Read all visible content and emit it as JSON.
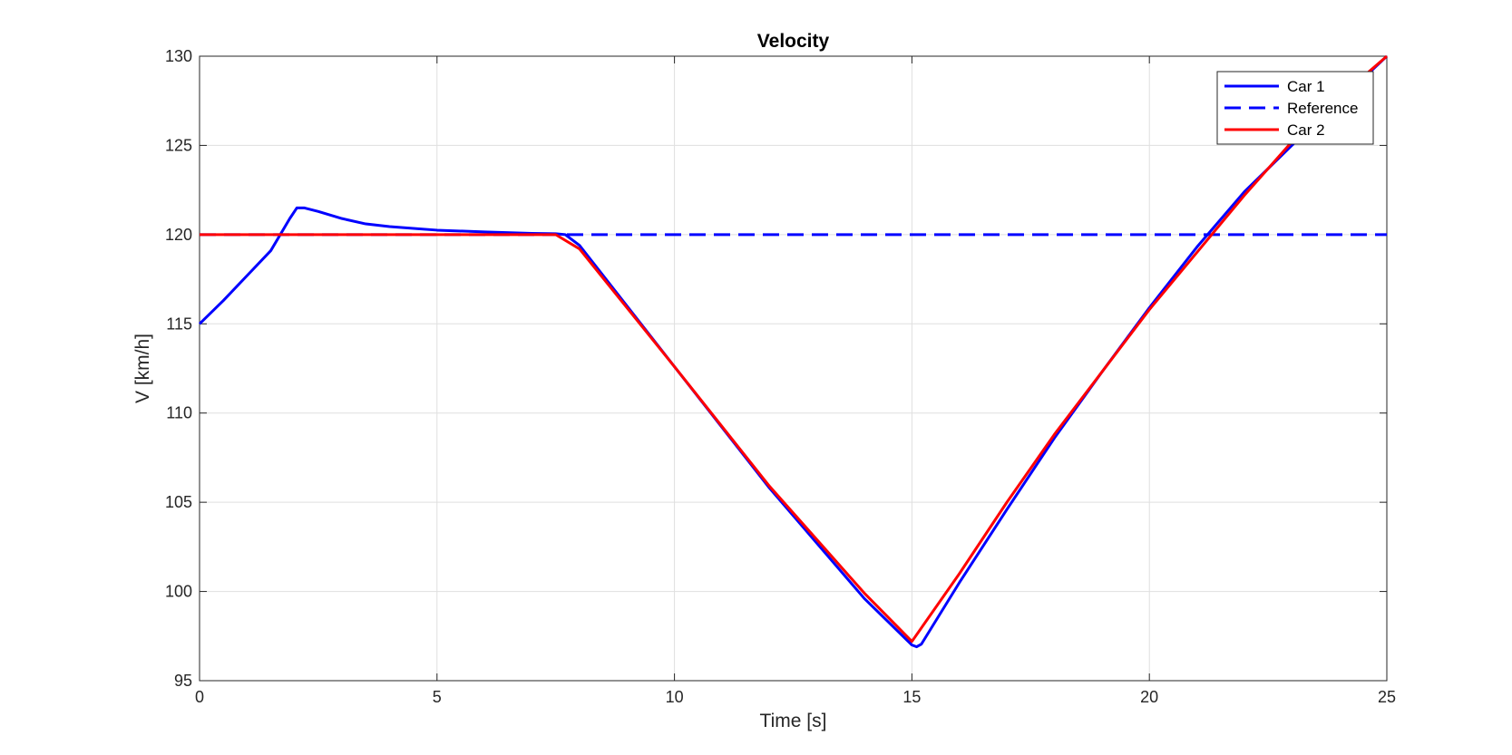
{
  "chart_data": {
    "type": "line",
    "title": "Velocity",
    "xlabel": "Time [s]",
    "ylabel": "V [km/h]",
    "xlim": [
      0,
      25
    ],
    "ylim": [
      95,
      130
    ],
    "xticks": [
      0,
      5,
      10,
      15,
      20,
      25
    ],
    "yticks": [
      95,
      100,
      105,
      110,
      115,
      120,
      125,
      130
    ],
    "grid": true,
    "legend_position": "top-right",
    "series": [
      {
        "name": "Car 1",
        "color": "#0000ff",
        "style": "solid",
        "x": [
          0,
          0.5,
          1.0,
          1.5,
          1.9,
          2.05,
          2.2,
          2.5,
          3.0,
          3.5,
          4.0,
          5.0,
          6.0,
          7.0,
          7.5,
          7.7,
          8.0,
          10.0,
          12.0,
          14.0,
          15.0,
          15.1,
          15.2,
          16.0,
          17.0,
          18.0,
          19.0,
          20.0,
          21.0,
          22.0,
          23.0,
          24.0,
          25.0
        ],
        "y": [
          115.0,
          116.3,
          117.7,
          119.1,
          120.9,
          121.5,
          121.5,
          121.3,
          120.9,
          120.6,
          120.45,
          120.25,
          120.15,
          120.07,
          120.05,
          120.0,
          119.4,
          112.6,
          105.8,
          99.6,
          97.0,
          96.9,
          97.05,
          100.5,
          104.6,
          108.6,
          112.3,
          115.9,
          119.3,
          122.4,
          125.0,
          127.5,
          130.0
        ]
      },
      {
        "name": "Reference",
        "color": "#0000ff",
        "style": "dashed",
        "x": [
          0,
          25
        ],
        "y": [
          120,
          120
        ]
      },
      {
        "name": "Car 2",
        "color": "#ff0000",
        "style": "solid",
        "x": [
          0,
          2.0,
          5.0,
          7.0,
          7.5,
          8.0,
          10.0,
          12.0,
          14.0,
          15.0,
          16.0,
          17.0,
          18.0,
          19.0,
          20.0,
          21.0,
          22.0,
          23.0,
          24.0,
          25.0
        ],
        "y": [
          120,
          120,
          120,
          120,
          120,
          119.2,
          112.6,
          105.9,
          99.9,
          97.2,
          101.0,
          105.0,
          108.8,
          112.3,
          115.8,
          119.0,
          122.2,
          125.2,
          127.7,
          130.0
        ]
      }
    ]
  }
}
